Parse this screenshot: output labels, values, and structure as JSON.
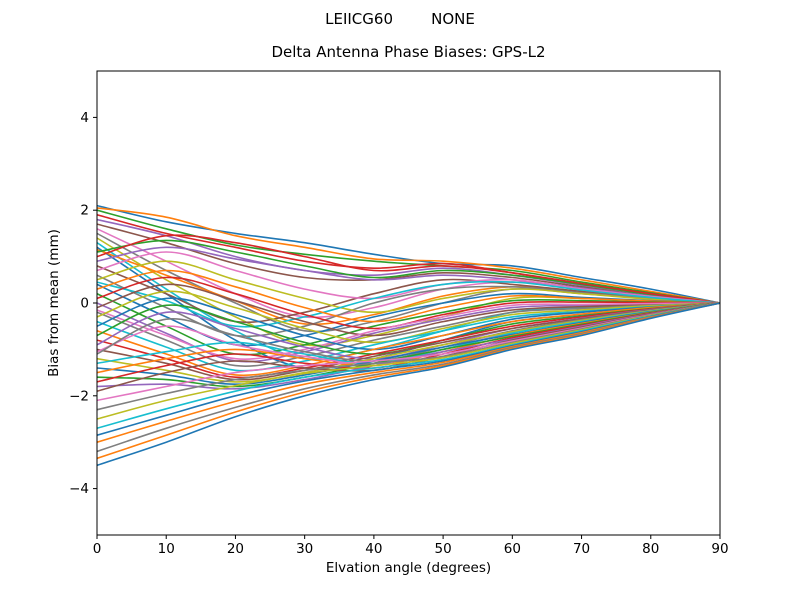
{
  "figure": {
    "suptitle": "LEIICG60        NONE"
  },
  "chart_data": {
    "type": "line",
    "title": "Delta Antenna Phase Biases: GPS-L2",
    "xlabel": "Elvation angle (degrees)",
    "ylabel": "Bias from mean (mm)",
    "xlim": [
      0,
      90
    ],
    "ylim": [
      -5,
      5
    ],
    "xticks": [
      0,
      10,
      20,
      30,
      40,
      50,
      60,
      70,
      80,
      90
    ],
    "yticks": [
      -4,
      -2,
      0,
      2,
      4
    ],
    "grid": false,
    "legend": "none",
    "line_width": 1.6,
    "palette": [
      "#1f77b4",
      "#ff7f0e",
      "#2ca02c",
      "#d62728",
      "#9467bd",
      "#8c564b",
      "#e377c2",
      "#7f7f7f",
      "#bcbd22",
      "#17becf"
    ],
    "x": [
      0,
      10,
      20,
      30,
      40,
      50,
      60,
      70,
      80,
      90
    ],
    "series": [
      {
        "values": [
          2.1,
          1.75,
          1.5,
          1.3,
          1.05,
          0.85,
          0.8,
          0.55,
          0.3,
          0
        ]
      },
      {
        "values": [
          2.05,
          1.85,
          1.45,
          1.2,
          0.95,
          0.9,
          0.75,
          0.5,
          0.25,
          0
        ]
      },
      {
        "values": [
          2.0,
          1.6,
          1.25,
          1.05,
          0.9,
          0.8,
          0.7,
          0.45,
          0.22,
          0
        ]
      },
      {
        "values": [
          1.9,
          1.5,
          1.2,
          0.9,
          0.75,
          0.85,
          0.65,
          0.4,
          0.2,
          0
        ]
      },
      {
        "values": [
          1.8,
          1.45,
          1.0,
          0.7,
          0.6,
          0.75,
          0.6,
          0.38,
          0.18,
          0
        ]
      },
      {
        "values": [
          1.7,
          1.3,
          0.85,
          0.55,
          0.5,
          0.65,
          0.55,
          0.35,
          0.15,
          0
        ]
      },
      {
        "values": [
          1.6,
          0.9,
          0.2,
          -0.3,
          -0.1,
          0.3,
          0.45,
          0.3,
          0.12,
          0
        ]
      },
      {
        "values": [
          1.5,
          0.7,
          0.0,
          -0.6,
          -0.4,
          0.0,
          0.3,
          0.2,
          0.1,
          0
        ]
      },
      {
        "values": [
          1.4,
          0.5,
          -0.3,
          -0.9,
          -0.7,
          -0.3,
          0.1,
          0.1,
          0.05,
          0
        ]
      },
      {
        "values": [
          1.3,
          0.3,
          -0.6,
          -1.2,
          -1.0,
          -0.6,
          -0.2,
          -0.1,
          -0.02,
          0
        ]
      },
      {
        "values": [
          1.2,
          0.2,
          -0.8,
          -1.4,
          -1.2,
          -0.8,
          -0.4,
          -0.25,
          -0.1,
          0
        ]
      },
      {
        "values": [
          1.15,
          0.6,
          0.05,
          -0.45,
          -0.25,
          0.15,
          0.35,
          0.25,
          0.1,
          0
        ]
      },
      {
        "values": [
          1.1,
          1.35,
          1.1,
          0.8,
          0.55,
          0.7,
          0.6,
          0.4,
          0.18,
          0
        ]
      },
      {
        "values": [
          1.0,
          1.45,
          1.3,
          1.0,
          0.7,
          0.8,
          0.65,
          0.42,
          0.2,
          0
        ]
      },
      {
        "values": [
          0.9,
          1.2,
          0.95,
          0.7,
          0.5,
          0.6,
          0.5,
          0.32,
          0.15,
          0
        ]
      },
      {
        "values": [
          0.8,
          0.2,
          -0.4,
          -0.2,
          0.2,
          0.5,
          0.4,
          0.25,
          0.1,
          0
        ]
      },
      {
        "values": [
          0.7,
          1.1,
          0.7,
          0.3,
          0.1,
          0.4,
          0.5,
          0.3,
          0.14,
          0
        ]
      },
      {
        "values": [
          0.6,
          -0.1,
          -0.7,
          -0.5,
          0.0,
          0.3,
          0.35,
          0.22,
          0.1,
          0
        ]
      },
      {
        "values": [
          0.5,
          0.9,
          0.5,
          0.1,
          -0.2,
          0.1,
          0.3,
          0.2,
          0.08,
          0
        ]
      },
      {
        "values": [
          0.45,
          0.05,
          -0.5,
          -0.3,
          0.1,
          0.4,
          0.45,
          0.28,
          0.12,
          0
        ]
      },
      {
        "values": [
          0.4,
          -0.3,
          -0.9,
          -0.7,
          -0.3,
          0.0,
          0.2,
          0.12,
          0.05,
          0
        ]
      },
      {
        "values": [
          0.3,
          0.7,
          0.35,
          -0.1,
          -0.4,
          -0.1,
          0.15,
          0.1,
          0.04,
          0
        ]
      },
      {
        "values": [
          0.2,
          -0.5,
          -1.1,
          -0.9,
          -0.5,
          -0.2,
          0.05,
          0.05,
          0.02,
          0
        ]
      },
      {
        "values": [
          0.1,
          0.55,
          0.2,
          -0.25,
          -0.55,
          -0.25,
          0.0,
          0.02,
          0.01,
          0
        ]
      },
      {
        "values": [
          0.0,
          -0.65,
          -1.25,
          -1.05,
          -0.65,
          -0.35,
          -0.1,
          -0.05,
          -0.02,
          0
        ]
      },
      {
        "values": [
          -0.1,
          0.4,
          0.05,
          -0.4,
          -0.7,
          -0.4,
          -0.15,
          -0.08,
          -0.03,
          0
        ]
      },
      {
        "values": [
          -0.15,
          -0.7,
          -1.2,
          -1.0,
          -0.6,
          -0.3,
          -0.05,
          -0.03,
          -0.01,
          0
        ]
      },
      {
        "values": [
          -0.2,
          -0.8,
          -1.35,
          -1.15,
          -0.8,
          -0.5,
          -0.2,
          -0.12,
          -0.05,
          0
        ]
      },
      {
        "values": [
          -0.3,
          0.25,
          -0.1,
          -0.55,
          -0.85,
          -0.55,
          -0.25,
          -0.15,
          -0.06,
          0
        ]
      },
      {
        "values": [
          -0.4,
          -0.95,
          -1.45,
          -1.25,
          -0.9,
          -0.6,
          -0.3,
          -0.18,
          -0.08,
          0
        ]
      },
      {
        "values": [
          -0.5,
          0.1,
          -0.25,
          -0.7,
          -1.0,
          -0.7,
          -0.35,
          -0.2,
          -0.09,
          0
        ]
      },
      {
        "values": [
          -0.6,
          -1.1,
          -1.55,
          -1.35,
          -1.0,
          -0.7,
          -0.4,
          -0.24,
          -0.1,
          0
        ]
      },
      {
        "values": [
          -0.7,
          -0.05,
          -0.4,
          -0.85,
          -1.1,
          -0.8,
          -0.45,
          -0.28,
          -0.12,
          0
        ]
      },
      {
        "values": [
          -0.8,
          -1.2,
          -1.6,
          -1.4,
          -1.1,
          -0.8,
          -0.5,
          -0.3,
          -0.13,
          0
        ]
      },
      {
        "values": [
          -0.9,
          -0.2,
          -0.55,
          -0.95,
          -1.2,
          -0.9,
          -0.55,
          -0.33,
          -0.14,
          0
        ]
      },
      {
        "values": [
          -1.0,
          -1.3,
          -1.65,
          -1.45,
          -1.15,
          -0.85,
          -0.55,
          -0.34,
          -0.15,
          0
        ]
      },
      {
        "values": [
          -1.05,
          -0.5,
          -0.9,
          -1.15,
          -1.3,
          -1.0,
          -0.63,
          -0.37,
          -0.17,
          0
        ]
      },
      {
        "values": [
          -1.1,
          -0.35,
          -0.7,
          -1.05,
          -1.25,
          -0.95,
          -0.6,
          -0.36,
          -0.16,
          0
        ]
      },
      {
        "values": [
          -1.2,
          -1.45,
          -1.7,
          -1.5,
          -1.2,
          -0.9,
          -0.62,
          -0.38,
          -0.17,
          0
        ]
      },
      {
        "values": [
          -1.3,
          -1.05,
          -0.85,
          -1.1,
          -1.3,
          -1.0,
          -0.65,
          -0.4,
          -0.18,
          0
        ]
      },
      {
        "values": [
          -1.4,
          -1.55,
          -1.75,
          -1.55,
          -1.25,
          -0.95,
          -0.68,
          -0.42,
          -0.19,
          0
        ]
      },
      {
        "values": [
          -1.5,
          -1.2,
          -1.0,
          -1.2,
          -1.35,
          -1.05,
          -0.7,
          -0.44,
          -0.2,
          0
        ]
      },
      {
        "values": [
          -1.6,
          -1.65,
          -1.8,
          -1.6,
          -1.3,
          -1.0,
          -0.72,
          -0.46,
          -0.21,
          0
        ]
      },
      {
        "values": [
          -1.7,
          -1.35,
          -1.1,
          -1.3,
          -1.4,
          -1.1,
          -0.75,
          -0.48,
          -0.22,
          0
        ]
      },
      {
        "values": [
          -1.8,
          -1.75,
          -1.85,
          -1.65,
          -1.35,
          -1.05,
          -0.78,
          -0.5,
          -0.23,
          0
        ]
      },
      {
        "values": [
          -1.9,
          -1.5,
          -1.25,
          -1.4,
          -1.45,
          -1.15,
          -0.8,
          -0.52,
          -0.24,
          0
        ]
      },
      {
        "values": [
          -2.1,
          -1.8,
          -1.5,
          -1.35,
          -1.25,
          -1.1,
          -0.82,
          -0.54,
          -0.25,
          0
        ]
      },
      {
        "values": [
          -2.3,
          -1.95,
          -1.65,
          -1.45,
          -1.3,
          -1.15,
          -0.85,
          -0.56,
          -0.26,
          0
        ]
      },
      {
        "values": [
          -2.5,
          -2.1,
          -1.78,
          -1.52,
          -1.35,
          -1.18,
          -0.87,
          -0.58,
          -0.27,
          0
        ]
      },
      {
        "values": [
          -2.7,
          -2.28,
          -1.9,
          -1.6,
          -1.4,
          -1.22,
          -0.9,
          -0.6,
          -0.28,
          0
        ]
      },
      {
        "values": [
          -2.85,
          -2.42,
          -2.0,
          -1.68,
          -1.45,
          -1.25,
          -0.92,
          -0.62,
          -0.29,
          0
        ]
      },
      {
        "values": [
          -3.0,
          -2.55,
          -2.12,
          -1.75,
          -1.5,
          -1.28,
          -0.94,
          -0.64,
          -0.3,
          0
        ]
      },
      {
        "values": [
          -3.2,
          -2.7,
          -2.25,
          -1.85,
          -1.55,
          -1.32,
          -0.96,
          -0.66,
          -0.31,
          0
        ],
        "color": "#7f7f7f"
      },
      {
        "values": [
          -3.35,
          -2.85,
          -2.35,
          -1.92,
          -1.6,
          -1.35,
          -0.98,
          -0.68,
          -0.32,
          0
        ],
        "color": "#ff7f0e"
      },
      {
        "values": [
          -3.5,
          -3.0,
          -2.45,
          -2.0,
          -1.65,
          -1.38,
          -1.0,
          -0.7,
          -0.33,
          0
        ],
        "color": "#1f77b4"
      }
    ]
  }
}
